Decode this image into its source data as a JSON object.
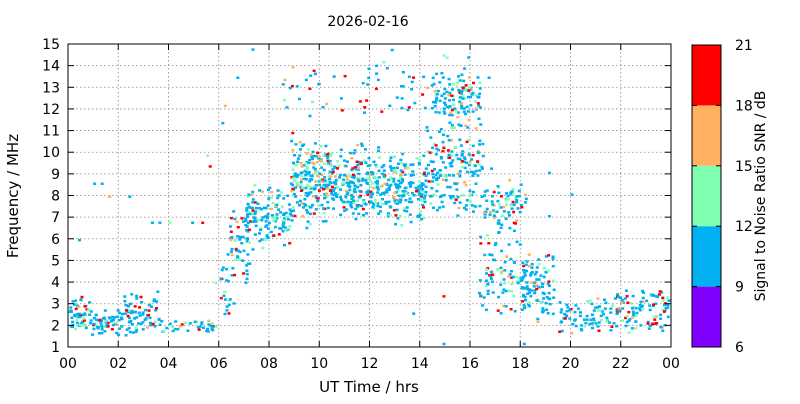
{
  "chart_data": {
    "type": "scatter",
    "title": "2026-02-16",
    "xlabel": "UT Time / hrs",
    "ylabel": "Frequency / MHz",
    "xlim": [
      0,
      24
    ],
    "ylim": [
      1,
      15
    ],
    "x_ticks": [
      "00",
      "02",
      "04",
      "06",
      "08",
      "10",
      "12",
      "14",
      "16",
      "18",
      "20",
      "22",
      "00"
    ],
    "y_ticks": [
      "1",
      "2",
      "3",
      "4",
      "5",
      "6",
      "7",
      "8",
      "9",
      "10",
      "11",
      "12",
      "13",
      "14",
      "15"
    ],
    "grid": true,
    "colorbar": {
      "label": "Signal to Noise Ratio SNR / dB",
      "range": [
        6,
        21
      ],
      "ticks": [
        "6",
        "9",
        "12",
        "15",
        "18",
        "21"
      ],
      "bands": [
        {
          "from": 6,
          "to": 9,
          "color": "#7f00ff"
        },
        {
          "from": 9,
          "to": 12,
          "color": "#00b0f0"
        },
        {
          "from": 12,
          "to": 15,
          "color": "#80ffb0"
        },
        {
          "from": 15,
          "to": 18,
          "color": "#ffb060"
        },
        {
          "from": 18,
          "to": 21,
          "color": "#ff0000"
        }
      ]
    },
    "clusters": [
      {
        "x": [
          0.0,
          0.9
        ],
        "y": [
          1.5,
          3.6
        ],
        "n": 55
      },
      {
        "x": [
          0.9,
          2.0
        ],
        "y": [
          1.5,
          2.9
        ],
        "n": 55
      },
      {
        "x": [
          2.0,
          3.6
        ],
        "y": [
          1.6,
          3.7
        ],
        "n": 75
      },
      {
        "x": [
          3.6,
          5.9
        ],
        "y": [
          1.6,
          2.4
        ],
        "n": 35
      },
      {
        "x": [
          5.8,
          6.6
        ],
        "y": [
          2.0,
          5.5
        ],
        "n": 25
      },
      {
        "x": [
          6.4,
          7.2
        ],
        "y": [
          3.5,
          7.6
        ],
        "n": 50
      },
      {
        "x": [
          7.0,
          8.8
        ],
        "y": [
          5.5,
          8.6
        ],
        "n": 130
      },
      {
        "x": [
          8.8,
          10.3
        ],
        "y": [
          6.5,
          11.0
        ],
        "n": 190
      },
      {
        "x": [
          10.3,
          12.4
        ],
        "y": [
          6.8,
          10.5
        ],
        "n": 230
      },
      {
        "x": [
          12.4,
          14.2
        ],
        "y": [
          6.6,
          10.2
        ],
        "n": 190
      },
      {
        "x": [
          14.2,
          16.5
        ],
        "y": [
          6.8,
          11.5
        ],
        "n": 170
      },
      {
        "x": [
          14.4,
          16.4
        ],
        "y": [
          11.0,
          14.0
        ],
        "n": 110
      },
      {
        "x": [
          16.5,
          18.2
        ],
        "y": [
          6.0,
          9.0
        ],
        "n": 80
      },
      {
        "x": [
          16.3,
          18.3
        ],
        "y": [
          2.2,
          6.5
        ],
        "n": 90
      },
      {
        "x": [
          18.0,
          19.3
        ],
        "y": [
          2.0,
          5.5
        ],
        "n": 95
      },
      {
        "x": [
          19.5,
          21.7
        ],
        "y": [
          1.6,
          3.4
        ],
        "n": 75
      },
      {
        "x": [
          21.7,
          24.0
        ],
        "y": [
          1.6,
          4.0
        ],
        "n": 110
      },
      {
        "x": [
          8.5,
          16.0
        ],
        "y": [
          11.0,
          15.0
        ],
        "n": 75
      }
    ],
    "isolated_points": [
      {
        "x": 0.4,
        "y": 6.0
      },
      {
        "x": 1.0,
        "y": 8.6
      },
      {
        "x": 1.3,
        "y": 8.6
      },
      {
        "x": 1.6,
        "y": 8.0
      },
      {
        "x": 2.4,
        "y": 8.0
      },
      {
        "x": 3.3,
        "y": 6.8
      },
      {
        "x": 3.6,
        "y": 6.8
      },
      {
        "x": 4.0,
        "y": 6.8
      },
      {
        "x": 4.9,
        "y": 6.8
      },
      {
        "x": 5.3,
        "y": 6.8
      },
      {
        "x": 5.5,
        "y": 9.9
      },
      {
        "x": 5.6,
        "y": 9.4
      },
      {
        "x": 6.1,
        "y": 11.4
      },
      {
        "x": 6.2,
        "y": 12.2
      },
      {
        "x": 6.7,
        "y": 13.5
      },
      {
        "x": 7.3,
        "y": 14.8
      },
      {
        "x": 19.1,
        "y": 7.1
      },
      {
        "x": 19.1,
        "y": 9.1
      },
      {
        "x": 20.0,
        "y": 8.1
      },
      {
        "x": 14.9,
        "y": 3.4
      },
      {
        "x": 14.9,
        "y": 1.2
      },
      {
        "x": 18.1,
        "y": 1.2
      },
      {
        "x": 13.7,
        "y": 2.6
      },
      {
        "x": 16.7,
        "y": 13.5
      },
      {
        "x": 16.8,
        "y": 9.3
      },
      {
        "x": 5.2,
        "y": 2.0
      }
    ]
  }
}
